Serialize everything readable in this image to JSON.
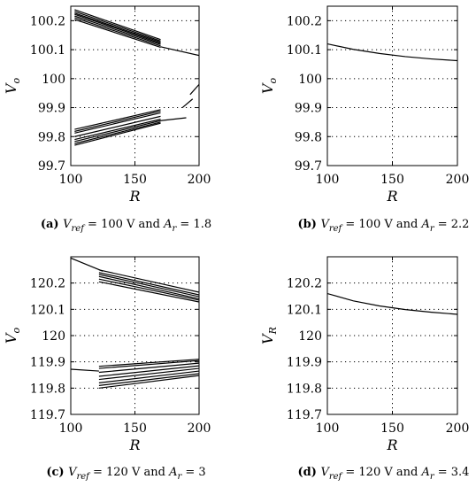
{
  "chart_data": [
    {
      "panel": "a",
      "type": "line",
      "caption": {
        "tag": "(a)",
        "sym1": "V",
        "sub1": "ref",
        "mid": " = 100 V and ",
        "sym2": "A",
        "sub2": "r",
        "end": " = 1.8"
      },
      "xlabel": "R",
      "ylabel": {
        "main": "V",
        "sub": "o"
      },
      "xlim": [
        100,
        200
      ],
      "ylim": [
        99.7,
        100.25
      ],
      "xticks": [
        100,
        150,
        200
      ],
      "yticks": [
        99.7,
        99.8,
        99.9,
        100,
        100.1,
        100.2
      ],
      "ytick_labels": [
        "99.7",
        "99.8",
        "99.9",
        "100",
        "100.1",
        "100.2"
      ],
      "grid": true,
      "series": [
        {
          "x": [
            103,
            170
          ],
          "y": [
            100.238,
            100.135
          ]
        },
        {
          "x": [
            103,
            170
          ],
          "y": [
            100.232,
            100.13
          ]
        },
        {
          "x": [
            103,
            170
          ],
          "y": [
            100.226,
            100.126
          ]
        },
        {
          "x": [
            103,
            170
          ],
          "y": [
            100.222,
            100.122
          ]
        },
        {
          "x": [
            103,
            170
          ],
          "y": [
            100.216,
            100.118
          ]
        },
        {
          "x": [
            103,
            170
          ],
          "y": [
            100.21,
            100.113
          ]
        },
        {
          "x": [
            103,
            170
          ],
          "y": [
            100.204,
            100.108
          ]
        },
        {
          "x": [
            170,
            200
          ],
          "y": [
            100.11,
            100.08
          ]
        },
        {
          "x": [
            103,
            170
          ],
          "y": [
            99.825,
            99.893
          ]
        },
        {
          "x": [
            103,
            170
          ],
          "y": [
            99.818,
            99.888
          ]
        },
        {
          "x": [
            103,
            170
          ],
          "y": [
            99.812,
            99.882
          ]
        },
        {
          "x": [
            103,
            170
          ],
          "y": [
            99.8,
            99.87
          ]
        },
        {
          "x": [
            103,
            170
          ],
          "y": [
            99.79,
            99.86
          ]
        },
        {
          "x": [
            103,
            170
          ],
          "y": [
            99.783,
            99.855
          ]
        },
        {
          "x": [
            103,
            170
          ],
          "y": [
            99.776,
            99.85
          ]
        },
        {
          "x": [
            103,
            170
          ],
          "y": [
            99.77,
            99.846
          ]
        },
        {
          "x": [
            170,
            190
          ],
          "y": [
            99.855,
            99.865
          ]
        },
        {
          "x": [
            187,
            195
          ],
          "y": [
            99.9,
            99.93
          ]
        },
        {
          "x": [
            193,
            200
          ],
          "y": [
            99.945,
            99.98
          ]
        }
      ]
    },
    {
      "panel": "b",
      "type": "line",
      "caption": {
        "tag": "(b)",
        "sym1": "V",
        "sub1": "ref",
        "mid": " = 100 V and ",
        "sym2": "A",
        "sub2": "r",
        "end": " = 2.2"
      },
      "xlabel": "R",
      "ylabel": {
        "main": "V",
        "sub": "o"
      },
      "xlim": [
        100,
        200
      ],
      "ylim": [
        99.7,
        100.25
      ],
      "xticks": [
        100,
        150,
        200
      ],
      "yticks": [
        99.7,
        99.8,
        99.9,
        100,
        100.1,
        100.2
      ],
      "ytick_labels": [
        "99.7",
        "99.8",
        "99.9",
        "100",
        "100.1",
        "100.2"
      ],
      "grid": true,
      "series": [
        {
          "x": [
            100,
            120,
            140,
            160,
            180,
            200
          ],
          "y": [
            100.12,
            100.101,
            100.087,
            100.076,
            100.068,
            100.062
          ]
        }
      ]
    },
    {
      "panel": "c",
      "type": "line",
      "caption": {
        "tag": "(c)",
        "sym1": "V",
        "sub1": "ref",
        "mid": " = 120 V and ",
        "sym2": "A",
        "sub2": "r",
        "end": " = 3"
      },
      "xlabel": "R",
      "ylabel": {
        "main": "V",
        "sub": "o"
      },
      "xlim": [
        100,
        200
      ],
      "ylim": [
        119.7,
        120.3
      ],
      "xticks": [
        100,
        150,
        200
      ],
      "yticks": [
        119.7,
        119.8,
        119.9,
        120,
        120.1,
        120.2
      ],
      "ytick_labels": [
        "119.7",
        "119.8",
        "119.9",
        "120",
        "120.1",
        "120.2"
      ],
      "grid": true,
      "series": [
        {
          "x": [
            100,
            125
          ],
          "y": [
            120.295,
            120.245
          ]
        },
        {
          "x": [
            122,
            200
          ],
          "y": [
            120.25,
            120.165
          ]
        },
        {
          "x": [
            122,
            200
          ],
          "y": [
            120.24,
            120.155
          ]
        },
        {
          "x": [
            122,
            200
          ],
          "y": [
            120.233,
            120.148
          ]
        },
        {
          "x": [
            122,
            200
          ],
          "y": [
            120.225,
            120.14
          ]
        },
        {
          "x": [
            122,
            200
          ],
          "y": [
            120.215,
            120.135
          ]
        },
        {
          "x": [
            122,
            200
          ],
          "y": [
            120.205,
            120.128
          ]
        },
        {
          "x": [
            100,
            122
          ],
          "y": [
            119.872,
            119.865
          ]
        },
        {
          "x": [
            122,
            200
          ],
          "y": [
            119.883,
            119.91
          ]
        },
        {
          "x": [
            122,
            200
          ],
          "y": [
            119.875,
            119.905
          ]
        },
        {
          "x": [
            122,
            200
          ],
          "y": [
            119.86,
            119.895
          ]
        },
        {
          "x": [
            122,
            200
          ],
          "y": [
            119.845,
            119.885
          ]
        },
        {
          "x": [
            122,
            200
          ],
          "y": [
            119.833,
            119.875
          ]
        },
        {
          "x": [
            122,
            200
          ],
          "y": [
            119.82,
            119.865
          ]
        },
        {
          "x": [
            122,
            200
          ],
          "y": [
            119.81,
            119.855
          ]
        },
        {
          "x": [
            122,
            200
          ],
          "y": [
            119.8,
            119.848
          ]
        }
      ]
    },
    {
      "panel": "d",
      "type": "line",
      "caption": {
        "tag": "(d)",
        "sym1": "V",
        "sub1": "ref",
        "mid": " = 120 V and ",
        "sym2": "A",
        "sub2": "r",
        "end": " = 3.4"
      },
      "xlabel": "R",
      "ylabel": {
        "main": "V",
        "sub": "R"
      },
      "xlim": [
        100,
        200
      ],
      "ylim": [
        119.7,
        120.3
      ],
      "xticks": [
        100,
        150,
        200
      ],
      "yticks": [
        119.7,
        119.8,
        119.9,
        120,
        120.1,
        120.2
      ],
      "ytick_labels": [
        "119.7",
        "119.8",
        "119.9",
        "120",
        "120.1",
        "120.2"
      ],
      "grid": true,
      "series": [
        {
          "x": [
            100,
            120,
            140,
            160,
            180,
            200
          ],
          "y": [
            120.16,
            120.132,
            120.113,
            120.099,
            120.089,
            120.081
          ]
        }
      ]
    }
  ]
}
